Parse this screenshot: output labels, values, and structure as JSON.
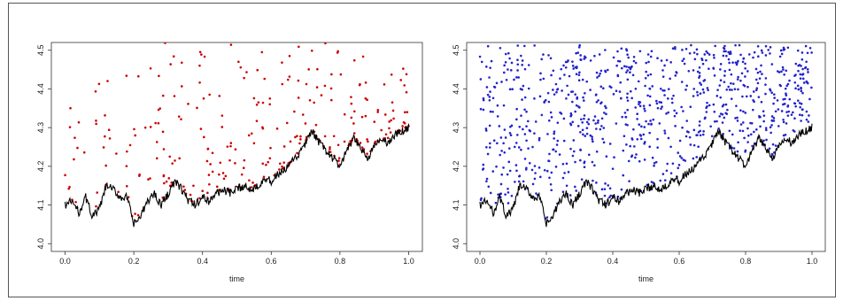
{
  "chart_data": [
    {
      "type": "scatter",
      "title": "",
      "xlabel": "time",
      "ylabel": "",
      "xlim": [
        0.0,
        1.0
      ],
      "ylim": [
        4.0,
        4.5
      ],
      "x_ticks": [
        "0.0",
        "0.2",
        "0.4",
        "0.6",
        "0.8",
        "1.0"
      ],
      "y_ticks": [
        "4.0",
        "4.1",
        "4.2",
        "4.3",
        "4.4",
        "4.5"
      ],
      "grid": false,
      "legend": "none",
      "series": [
        {
          "kind": "line",
          "color": "#000000",
          "x": [
            0.0,
            0.02,
            0.04,
            0.06,
            0.08,
            0.1,
            0.12,
            0.14,
            0.16,
            0.18,
            0.2,
            0.22,
            0.24,
            0.26,
            0.28,
            0.3,
            0.32,
            0.34,
            0.36,
            0.38,
            0.4,
            0.42,
            0.44,
            0.46,
            0.48,
            0.5,
            0.52,
            0.54,
            0.56,
            0.58,
            0.6,
            0.62,
            0.64,
            0.66,
            0.68,
            0.7,
            0.72,
            0.74,
            0.76,
            0.78,
            0.8,
            0.82,
            0.84,
            0.86,
            0.88,
            0.9,
            0.92,
            0.94,
            0.96,
            0.98,
            1.0
          ],
          "y": [
            4.1,
            4.11,
            4.08,
            4.12,
            4.07,
            4.09,
            4.15,
            4.14,
            4.12,
            4.12,
            4.05,
            4.07,
            4.11,
            4.13,
            4.1,
            4.13,
            4.16,
            4.14,
            4.11,
            4.1,
            4.12,
            4.11,
            4.13,
            4.14,
            4.13,
            4.14,
            4.15,
            4.14,
            4.15,
            4.17,
            4.16,
            4.18,
            4.19,
            4.21,
            4.23,
            4.26,
            4.29,
            4.26,
            4.24,
            4.22,
            4.2,
            4.24,
            4.27,
            4.25,
            4.22,
            4.25,
            4.27,
            4.26,
            4.28,
            4.29,
            4.3
          ]
        },
        {
          "kind": "points",
          "color": "#cc0000",
          "count": 300
        }
      ]
    },
    {
      "type": "scatter",
      "title": "",
      "xlabel": "time",
      "ylabel": "",
      "xlim": [
        0.0,
        1.0
      ],
      "ylim": [
        4.0,
        4.5
      ],
      "x_ticks": [
        "0.0",
        "0.2",
        "0.4",
        "0.6",
        "0.8",
        "1.0"
      ],
      "y_ticks": [
        "4.0",
        "4.1",
        "4.2",
        "4.3",
        "4.4",
        "4.5"
      ],
      "grid": false,
      "legend": "none",
      "series": [
        {
          "kind": "line",
          "color": "#000000",
          "x": [
            0.0,
            0.02,
            0.04,
            0.06,
            0.08,
            0.1,
            0.12,
            0.14,
            0.16,
            0.18,
            0.2,
            0.22,
            0.24,
            0.26,
            0.28,
            0.3,
            0.32,
            0.34,
            0.36,
            0.38,
            0.4,
            0.42,
            0.44,
            0.46,
            0.48,
            0.5,
            0.52,
            0.54,
            0.56,
            0.58,
            0.6,
            0.62,
            0.64,
            0.66,
            0.68,
            0.7,
            0.72,
            0.74,
            0.76,
            0.78,
            0.8,
            0.82,
            0.84,
            0.86,
            0.88,
            0.9,
            0.92,
            0.94,
            0.96,
            0.98,
            1.0
          ],
          "y": [
            4.1,
            4.11,
            4.08,
            4.12,
            4.07,
            4.09,
            4.15,
            4.14,
            4.12,
            4.12,
            4.05,
            4.07,
            4.11,
            4.13,
            4.1,
            4.13,
            4.16,
            4.14,
            4.11,
            4.1,
            4.12,
            4.11,
            4.13,
            4.14,
            4.13,
            4.14,
            4.15,
            4.14,
            4.15,
            4.17,
            4.16,
            4.18,
            4.19,
            4.21,
            4.23,
            4.26,
            4.29,
            4.26,
            4.24,
            4.22,
            4.2,
            4.24,
            4.27,
            4.25,
            4.22,
            4.25,
            4.27,
            4.26,
            4.28,
            4.29,
            4.3
          ]
        },
        {
          "kind": "points",
          "color": "#2222cc",
          "count": 900
        }
      ]
    }
  ]
}
